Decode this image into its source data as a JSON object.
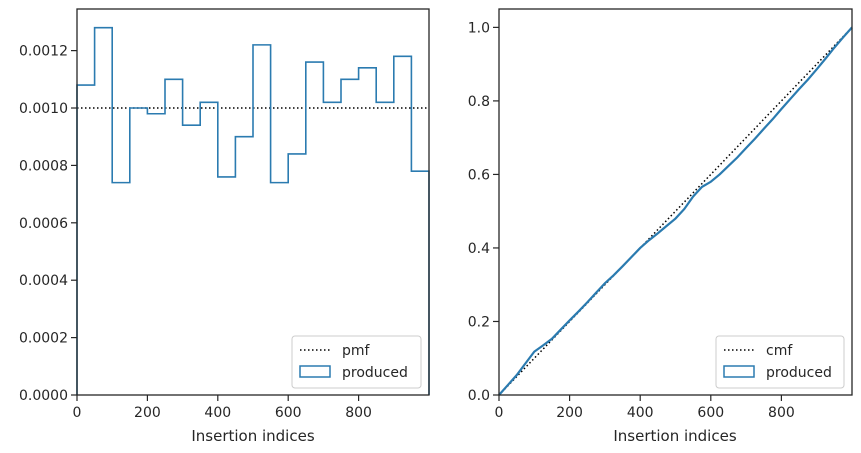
{
  "chart_data": [
    {
      "type": "histogram",
      "xlabel": "Insertion indices",
      "ylabel": "",
      "xlim": [
        0,
        1000
      ],
      "ylim": [
        0,
        0.001345
      ],
      "xticks": [
        0,
        200,
        400,
        600,
        800
      ],
      "xtick_labels": [
        "0",
        "200",
        "400",
        "600",
        "800"
      ],
      "yticks": [
        0,
        0.0002,
        0.0004,
        0.0006,
        0.0008,
        0.001,
        0.0012
      ],
      "ytick_labels": [
        "0.0000",
        "0.0002",
        "0.0004",
        "0.0006",
        "0.0008",
        "0.0010",
        "0.0012"
      ],
      "grid": false,
      "legend_position": "lower-right",
      "bin_edges": [
        0,
        50,
        100,
        150,
        200,
        250,
        300,
        350,
        400,
        450,
        500,
        550,
        600,
        650,
        700,
        750,
        800,
        850,
        900,
        950,
        1000
      ],
      "series": [
        {
          "name": "pmf",
          "style": "dotted",
          "color": "#000000",
          "x": [
            0,
            1000
          ],
          "y": [
            0.001,
            0.001
          ]
        },
        {
          "name": "produced",
          "style": "step",
          "color": "#2b7bb0",
          "values": [
            0.00108,
            0.00128,
            0.00074,
            0.001,
            0.00098,
            0.0011,
            0.00094,
            0.00102,
            0.00076,
            0.0009,
            0.00122,
            0.00074,
            0.00084,
            0.00116,
            0.00102,
            0.0011,
            0.00114,
            0.00102,
            0.00118,
            0.00078
          ]
        }
      ]
    },
    {
      "type": "line",
      "xlabel": "Insertion indices",
      "ylabel": "",
      "xlim": [
        0,
        1000
      ],
      "ylim": [
        0,
        1.05
      ],
      "xticks": [
        0,
        200,
        400,
        600,
        800
      ],
      "xtick_labels": [
        "0",
        "200",
        "400",
        "600",
        "800"
      ],
      "yticks": [
        0,
        0.2,
        0.4,
        0.6,
        0.8,
        1.0
      ],
      "ytick_labels": [
        "0.0",
        "0.2",
        "0.4",
        "0.6",
        "0.8",
        "1.0"
      ],
      "grid": false,
      "legend_position": "lower-right",
      "series": [
        {
          "name": "cmf",
          "style": "dotted",
          "color": "#000000",
          "x": [
            0,
            1000
          ],
          "y": [
            0,
            1
          ]
        },
        {
          "name": "produced",
          "style": "solid",
          "color": "#2b7bb0",
          "x": [
            0,
            25,
            50,
            75,
            100,
            125,
            150,
            175,
            200,
            225,
            250,
            275,
            300,
            325,
            350,
            375,
            400,
            425,
            450,
            475,
            500,
            525,
            550,
            575,
            600,
            625,
            650,
            675,
            700,
            725,
            750,
            775,
            800,
            825,
            850,
            875,
            900,
            925,
            950,
            975,
            1000
          ],
          "y": [
            0,
            0.027,
            0.054,
            0.086,
            0.118,
            0.135,
            0.153,
            0.178,
            0.203,
            0.227,
            0.252,
            0.278,
            0.304,
            0.326,
            0.35,
            0.375,
            0.4,
            0.421,
            0.44,
            0.46,
            0.48,
            0.506,
            0.54,
            0.566,
            0.58,
            0.6,
            0.623,
            0.646,
            0.672,
            0.697,
            0.724,
            0.75,
            0.778,
            0.805,
            0.832,
            0.858,
            0.886,
            0.915,
            0.945,
            0.973,
            1.0
          ]
        }
      ]
    }
  ]
}
